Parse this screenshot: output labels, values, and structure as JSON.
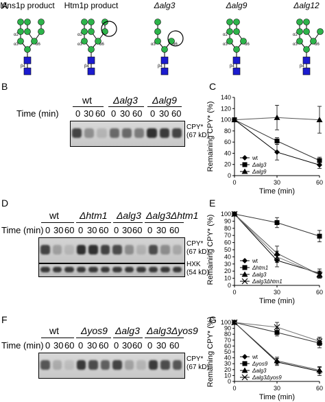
{
  "panel_a": {
    "letter": "A",
    "structures": [
      {
        "label": "Mns1p product",
        "cx": 40
      },
      {
        "label": "Htm1p product",
        "cx": 133
      },
      {
        "label": "Δalg3",
        "cx": 240
      },
      {
        "label": "Δalg9",
        "cx": 345
      },
      {
        "label": "Δalg12",
        "cx": 447
      }
    ],
    "linkages": {
      "a12": "α2",
      "a13": "α3",
      "a16": "α6",
      "b14": "β4"
    }
  },
  "panel_b": {
    "letter": "B",
    "time_label": "Time (min)",
    "groups": [
      "wt",
      "Δalg3",
      "Δalg9"
    ],
    "lanes": [
      "0",
      "30",
      "60"
    ],
    "band_label": [
      "CPY*",
      "(67 kD)"
    ]
  },
  "panel_c": {
    "letter": "C",
    "chart_data": {
      "type": "line",
      "xlabel": "Time (min)",
      "ylabel": "Remaining CPY* (%)",
      "x": [
        0,
        30,
        60
      ],
      "xlim": [
        0,
        60
      ],
      "ylim": [
        0,
        140
      ],
      "xticks": [
        "0",
        "30",
        "60"
      ],
      "yticks": [
        "0",
        "20",
        "40",
        "60",
        "80",
        "100",
        "120",
        "140"
      ],
      "legend_position": "bottom-left",
      "series": [
        {
          "name": "wt",
          "marker": "diamond",
          "values": [
            100,
            42,
            19
          ],
          "errors": [
            0,
            14,
            6
          ]
        },
        {
          "name": "Δalg3",
          "marker": "square",
          "values": [
            100,
            62,
            27
          ],
          "errors": [
            0,
            6,
            6
          ]
        },
        {
          "name": "Δalg9",
          "marker": "triangle",
          "values": [
            100,
            104,
            100
          ],
          "errors": [
            0,
            22,
            24
          ]
        }
      ]
    }
  },
  "panel_d": {
    "letter": "D",
    "time_label": "Time (min)",
    "groups": [
      "wt",
      "Δhtm1",
      "Δalg3",
      "Δalg3Δhtm1"
    ],
    "lanes": [
      "0",
      "30",
      "60"
    ],
    "band_label": [
      "CPY*",
      "(67 kD)"
    ],
    "loading_label": [
      "HXK",
      "(54 kD)"
    ]
  },
  "panel_e": {
    "letter": "E",
    "chart_data": {
      "type": "line",
      "xlabel": "Time (min)",
      "ylabel": "Remaining CPY* (%)",
      "x": [
        0,
        30,
        60
      ],
      "xlim": [
        0,
        60
      ],
      "ylim": [
        0,
        100
      ],
      "xticks": [
        "0",
        "30",
        "60"
      ],
      "yticks": [
        "0",
        "10",
        "20",
        "30",
        "40",
        "50",
        "60",
        "70",
        "80",
        "90",
        "100"
      ],
      "legend_position": "bottom-left",
      "series": [
        {
          "name": "wt",
          "marker": "diamond",
          "values": [
            100,
            35,
            17
          ],
          "errors": [
            0,
            9,
            6
          ]
        },
        {
          "name": "Δhtm1",
          "marker": "square",
          "values": [
            100,
            88,
            69
          ],
          "errors": [
            0,
            7,
            8
          ]
        },
        {
          "name": "Δalg3",
          "marker": "triangle",
          "values": [
            100,
            45,
            15
          ],
          "errors": [
            0,
            10,
            5
          ]
        },
        {
          "name": "Δalg3Δhtm1",
          "marker": "x",
          "values": [
            100,
            40,
            15
          ],
          "errors": [
            0,
            8,
            5
          ]
        }
      ]
    }
  },
  "panel_f": {
    "letter": "F",
    "time_label": "Time (min)",
    "groups": [
      "wt",
      "Δyos9",
      "Δalg3",
      "Δalg3Δyos9"
    ],
    "lanes": [
      "0",
      "30",
      "60"
    ],
    "band_label": [
      "CPY*",
      "(67 kD)"
    ]
  },
  "panel_g": {
    "letter": "G",
    "chart_data": {
      "type": "line",
      "xlabel": "Time (min)",
      "ylabel": "Remaining CPY* (%)",
      "x": [
        0,
        30,
        60
      ],
      "xlim": [
        0,
        60
      ],
      "ylim": [
        0,
        100
      ],
      "xticks": [
        "0",
        "30",
        "60"
      ],
      "yticks": [
        "0",
        "10",
        "20",
        "30",
        "40",
        "50",
        "60",
        "70",
        "80",
        "90",
        "100"
      ],
      "legend_position": "bottom-left",
      "series": [
        {
          "name": "wt",
          "marker": "diamond",
          "values": [
            100,
            33,
            17
          ],
          "errors": [
            0,
            6,
            7
          ]
        },
        {
          "name": "Δyos9",
          "marker": "square",
          "values": [
            100,
            83,
            65
          ],
          "errors": [
            0,
            6,
            8
          ]
        },
        {
          "name": "Δalg3",
          "marker": "triangle",
          "values": [
            100,
            35,
            19
          ],
          "errors": [
            0,
            6,
            6
          ]
        },
        {
          "name": "Δalg3Δyos9",
          "marker": "x",
          "values": [
            100,
            92,
            68
          ],
          "errors": [
            0,
            8,
            7
          ]
        }
      ]
    }
  }
}
